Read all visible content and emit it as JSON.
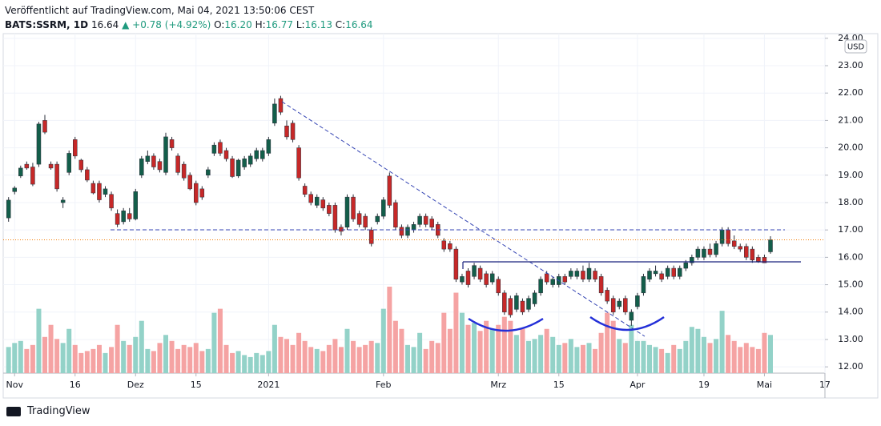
{
  "header": {
    "published": "Veröffentlicht auf TradingView.com, Mai 04, 2021 13:50:06 CEST",
    "symbol": "BATS:SSRM, 1D",
    "last": "16.64",
    "change": "▲ +0.78 (+4.92%)",
    "o_label": "O:",
    "o": "16.20",
    "h_label": "H:",
    "h": "16.77",
    "l_label": "L:",
    "l": "16.13",
    "c_label": "C:",
    "c": "16.64"
  },
  "footer": {
    "brand": "TradingView"
  },
  "chart_data": {
    "type": "candlestick",
    "currency": "USD",
    "grid": true,
    "up_color": "#135e4a",
    "down_color": "#c62828",
    "volume_up_color": "#93d2c8",
    "volume_down_color": "#f5a3a3",
    "price_line_color": "#f57c00",
    "ylim": [
      11.77,
      24.17
    ],
    "yticks": [
      {
        "value": 12,
        "label": "12.00"
      },
      {
        "value": 13,
        "label": "13.00"
      },
      {
        "value": 14,
        "label": "14.00"
      },
      {
        "value": 15,
        "label": "15.00"
      },
      {
        "value": 16,
        "label": "16.00"
      },
      {
        "value": 17,
        "label": "17.00"
      },
      {
        "value": 18,
        "label": "18.00"
      },
      {
        "value": 19,
        "label": "19.00"
      },
      {
        "value": 20,
        "label": "20.00"
      },
      {
        "value": 21,
        "label": "21.00"
      },
      {
        "value": 22,
        "label": "22.00"
      },
      {
        "value": 23,
        "label": "23.00"
      },
      {
        "value": 24,
        "label": "24.00"
      }
    ],
    "categories": [
      null,
      "Nov",
      null,
      null,
      null,
      null,
      null,
      null,
      null,
      null,
      null,
      "16",
      null,
      null,
      null,
      null,
      null,
      null,
      null,
      null,
      null,
      "Dez",
      null,
      null,
      null,
      null,
      null,
      null,
      null,
      null,
      null,
      "15",
      null,
      null,
      null,
      null,
      null,
      null,
      null,
      null,
      null,
      null,
      null,
      "2021",
      null,
      null,
      null,
      null,
      null,
      null,
      null,
      null,
      null,
      null,
      null,
      null,
      null,
      null,
      null,
      null,
      null,
      null,
      "Feb",
      null,
      null,
      null,
      null,
      null,
      null,
      null,
      null,
      null,
      null,
      null,
      null,
      null,
      null,
      null,
      null,
      null,
      null,
      "Mrz",
      null,
      null,
      null,
      null,
      null,
      null,
      null,
      null,
      null,
      "15",
      null,
      null,
      null,
      null,
      null,
      null,
      null,
      null,
      null,
      null,
      null,
      null,
      "Apr",
      null,
      null,
      null,
      null,
      null,
      null,
      null,
      null,
      null,
      null,
      "19",
      null,
      null,
      null,
      null,
      null,
      null,
      null,
      null,
      null,
      "Mai",
      null,
      null,
      null,
      null,
      null,
      null,
      null,
      null,
      null,
      "17"
    ],
    "ohlc": [
      [
        17.44,
        18.2,
        17.3,
        18.09
      ],
      [
        18.4,
        18.6,
        18.3,
        18.53
      ],
      [
        18.97,
        19.35,
        18.9,
        19.26
      ],
      [
        19.4,
        19.5,
        19.2,
        19.26
      ],
      [
        19.3,
        19.45,
        18.6,
        18.67
      ],
      [
        19.4,
        20.95,
        19.3,
        20.87
      ],
      [
        21.0,
        21.2,
        20.5,
        20.57
      ],
      [
        19.4,
        19.5,
        19.2,
        19.26
      ],
      [
        19.4,
        19.5,
        18.4,
        18.5
      ],
      [
        18.0,
        18.2,
        17.8,
        18.09
      ],
      [
        19.1,
        19.9,
        19.0,
        19.8
      ],
      [
        20.3,
        20.4,
        19.6,
        19.7
      ],
      [
        19.55,
        19.6,
        19.1,
        19.2
      ],
      [
        19.2,
        19.3,
        18.75,
        18.82
      ],
      [
        18.7,
        18.8,
        18.3,
        18.35
      ],
      [
        18.7,
        18.8,
        18.0,
        18.1
      ],
      [
        18.3,
        18.6,
        18.2,
        18.5
      ],
      [
        18.3,
        18.4,
        17.7,
        17.8
      ],
      [
        17.6,
        17.75,
        17.1,
        17.2
      ],
      [
        17.3,
        17.8,
        17.2,
        17.7
      ],
      [
        17.6,
        17.8,
        17.3,
        17.4
      ],
      [
        17.4,
        18.5,
        17.35,
        18.4
      ],
      [
        19.0,
        19.7,
        18.9,
        19.6
      ],
      [
        19.5,
        19.9,
        19.4,
        19.7
      ],
      [
        19.7,
        19.8,
        19.2,
        19.3
      ],
      [
        19.5,
        19.6,
        19.1,
        19.2
      ],
      [
        19.1,
        20.55,
        19.0,
        20.4
      ],
      [
        20.3,
        20.4,
        19.9,
        20.0
      ],
      [
        19.7,
        19.8,
        19.0,
        19.1
      ],
      [
        19.4,
        19.5,
        18.8,
        18.9
      ],
      [
        19.0,
        19.1,
        18.45,
        18.5
      ],
      [
        18.7,
        18.8,
        17.9,
        18.0
      ],
      [
        18.5,
        18.6,
        18.1,
        18.2
      ],
      [
        19.0,
        19.3,
        18.9,
        19.2
      ],
      [
        19.8,
        20.2,
        19.7,
        20.1
      ],
      [
        20.2,
        20.3,
        19.7,
        19.8
      ],
      [
        19.9,
        20.0,
        19.5,
        19.6
      ],
      [
        19.6,
        19.7,
        18.9,
        18.95
      ],
      [
        18.97,
        19.6,
        18.9,
        19.55
      ],
      [
        19.3,
        19.7,
        19.2,
        19.6
      ],
      [
        19.4,
        19.8,
        19.3,
        19.7
      ],
      [
        19.6,
        20.0,
        19.5,
        19.9
      ],
      [
        19.6,
        20.0,
        19.5,
        19.9
      ],
      [
        19.8,
        20.4,
        19.7,
        20.3
      ],
      [
        20.9,
        21.8,
        20.8,
        21.6
      ],
      [
        21.8,
        21.9,
        21.2,
        21.3
      ],
      [
        20.8,
        21.0,
        20.3,
        20.4
      ],
      [
        20.9,
        21.0,
        20.2,
        20.3
      ],
      [
        20.0,
        20.1,
        18.8,
        18.9
      ],
      [
        18.6,
        18.7,
        18.2,
        18.3
      ],
      [
        18.3,
        18.4,
        17.9,
        18.0
      ],
      [
        17.9,
        18.3,
        17.8,
        18.2
      ],
      [
        18.1,
        18.2,
        17.7,
        17.8
      ],
      [
        17.9,
        18.0,
        17.5,
        17.6
      ],
      [
        17.9,
        18.0,
        16.9,
        17.0
      ],
      [
        17.1,
        17.2,
        16.8,
        16.95
      ],
      [
        17.1,
        18.3,
        17.0,
        18.2
      ],
      [
        18.2,
        18.3,
        17.3,
        17.4
      ],
      [
        17.6,
        17.7,
        17.1,
        17.2
      ],
      [
        17.5,
        17.6,
        17.0,
        17.1
      ],
      [
        17.0,
        17.1,
        16.4,
        16.5
      ],
      [
        17.3,
        17.6,
        17.2,
        17.5
      ],
      [
        17.5,
        18.2,
        17.4,
        18.1
      ],
      [
        18.97,
        19.1,
        17.8,
        17.9
      ],
      [
        18.0,
        18.1,
        17.0,
        17.1
      ],
      [
        17.1,
        17.2,
        16.7,
        16.8
      ],
      [
        16.8,
        17.2,
        16.7,
        17.1
      ],
      [
        17.0,
        17.3,
        16.9,
        17.2
      ],
      [
        17.2,
        17.6,
        17.1,
        17.5
      ],
      [
        17.5,
        17.6,
        17.1,
        17.2
      ],
      [
        17.4,
        17.5,
        17.0,
        17.1
      ],
      [
        17.2,
        17.3,
        16.7,
        16.8
      ],
      [
        16.6,
        16.7,
        16.2,
        16.3
      ],
      [
        16.5,
        16.6,
        16.2,
        16.3
      ],
      [
        16.3,
        16.4,
        15.1,
        15.2
      ],
      [
        15.1,
        15.4,
        15.0,
        15.3
      ],
      [
        15.5,
        15.6,
        14.9,
        15.0
      ],
      [
        15.3,
        15.8,
        15.2,
        15.7
      ],
      [
        15.6,
        15.7,
        15.1,
        15.2
      ],
      [
        15.4,
        15.5,
        14.9,
        15.0
      ],
      [
        15.1,
        15.5,
        15.0,
        15.4
      ],
      [
        15.2,
        15.3,
        14.6,
        14.7
      ],
      [
        14.7,
        14.8,
        13.9,
        14.0
      ],
      [
        14.5,
        14.6,
        13.8,
        13.9
      ],
      [
        14.1,
        14.7,
        14.0,
        14.6
      ],
      [
        14.4,
        14.5,
        13.9,
        14.0
      ],
      [
        14.1,
        14.6,
        14.0,
        14.5
      ],
      [
        14.3,
        14.8,
        14.2,
        14.7
      ],
      [
        14.7,
        15.3,
        14.6,
        15.2
      ],
      [
        15.4,
        15.5,
        15.0,
        15.1
      ],
      [
        15.0,
        15.3,
        14.9,
        15.2
      ],
      [
        15.0,
        15.4,
        14.9,
        15.3
      ],
      [
        15.3,
        15.4,
        15.0,
        15.1
      ],
      [
        15.3,
        15.6,
        15.2,
        15.5
      ],
      [
        15.3,
        15.6,
        15.2,
        15.5
      ],
      [
        15.5,
        15.7,
        15.1,
        15.2
      ],
      [
        15.2,
        15.8,
        15.1,
        15.6
      ],
      [
        15.5,
        15.6,
        15.1,
        15.2
      ],
      [
        15.3,
        15.4,
        14.6,
        14.7
      ],
      [
        14.8,
        14.9,
        14.3,
        14.4
      ],
      [
        14.5,
        14.6,
        13.9,
        14.0
      ],
      [
        14.2,
        14.5,
        14.1,
        14.4
      ],
      [
        14.5,
        14.6,
        13.9,
        14.0
      ],
      [
        13.7,
        14.1,
        13.5,
        14.0
      ],
      [
        14.2,
        14.7,
        14.1,
        14.6
      ],
      [
        14.7,
        15.4,
        14.6,
        15.3
      ],
      [
        15.2,
        15.6,
        15.1,
        15.5
      ],
      [
        15.4,
        15.7,
        15.3,
        15.5
      ],
      [
        15.4,
        15.5,
        15.1,
        15.2
      ],
      [
        15.3,
        15.7,
        15.2,
        15.6
      ],
      [
        15.6,
        15.7,
        15.2,
        15.3
      ],
      [
        15.3,
        15.7,
        15.2,
        15.6
      ],
      [
        15.6,
        15.9,
        15.5,
        15.8
      ],
      [
        15.8,
        16.1,
        15.7,
        16.0
      ],
      [
        16.0,
        16.4,
        15.9,
        16.3
      ],
      [
        16.0,
        16.4,
        15.9,
        16.3
      ],
      [
        16.3,
        16.5,
        16.0,
        16.1
      ],
      [
        16.1,
        16.6,
        16.0,
        16.5
      ],
      [
        16.5,
        17.1,
        16.4,
        17.0
      ],
      [
        17.0,
        17.1,
        16.4,
        16.5
      ],
      [
        16.6,
        16.8,
        16.3,
        16.4
      ],
      [
        16.4,
        16.5,
        16.2,
        16.3
      ],
      [
        16.4,
        16.5,
        15.9,
        16.0
      ],
      [
        16.3,
        16.4,
        15.8,
        15.9
      ],
      [
        16.0,
        16.1,
        15.8,
        15.85
      ],
      [
        16.0,
        16.1,
        15.8,
        15.8
      ],
      [
        16.2,
        16.77,
        16.13,
        16.64
      ],
      null,
      null,
      null,
      null,
      null,
      null,
      null,
      null,
      null
    ],
    "volume": [
      1.3,
      1.5,
      1.6,
      1.2,
      1.4,
      3.2,
      1.8,
      2.4,
      1.7,
      1.5,
      2.2,
      1.4,
      1.0,
      1.1,
      1.2,
      1.4,
      1.0,
      1.3,
      2.4,
      1.6,
      1.4,
      1.8,
      2.6,
      1.2,
      1.1,
      1.5,
      1.9,
      1.6,
      1.2,
      1.4,
      1.3,
      1.5,
      1.1,
      1.2,
      3.0,
      3.2,
      1.4,
      1.0,
      1.1,
      0.9,
      0.8,
      1.0,
      0.9,
      1.1,
      2.4,
      1.8,
      1.7,
      1.4,
      2.0,
      1.6,
      1.3,
      1.2,
      1.1,
      1.4,
      1.7,
      1.3,
      2.2,
      1.6,
      1.3,
      1.4,
      1.6,
      1.5,
      3.2,
      4.3,
      2.6,
      2.2,
      1.4,
      1.3,
      2.0,
      1.2,
      1.6,
      1.5,
      3.0,
      2.2,
      4.0,
      3.0,
      2.4,
      2.5,
      2.1,
      2.6,
      2.2,
      2.4,
      2.8,
      2.6,
      1.9,
      2.2,
      1.6,
      1.7,
      1.9,
      2.2,
      1.8,
      1.4,
      1.5,
      1.7,
      1.3,
      1.4,
      1.5,
      1.2,
      2.0,
      3.0,
      2.6,
      1.7,
      1.5,
      2.4,
      1.6,
      1.6,
      1.4,
      1.3,
      1.2,
      1.0,
      1.4,
      1.2,
      1.6,
      2.3,
      2.2,
      1.8,
      1.5,
      1.7,
      3.1,
      1.9,
      1.6,
      1.3,
      1.5,
      1.3,
      1.2,
      2.0,
      1.9,
      null,
      null,
      null,
      null,
      null,
      null,
      null,
      null,
      null
    ]
  }
}
